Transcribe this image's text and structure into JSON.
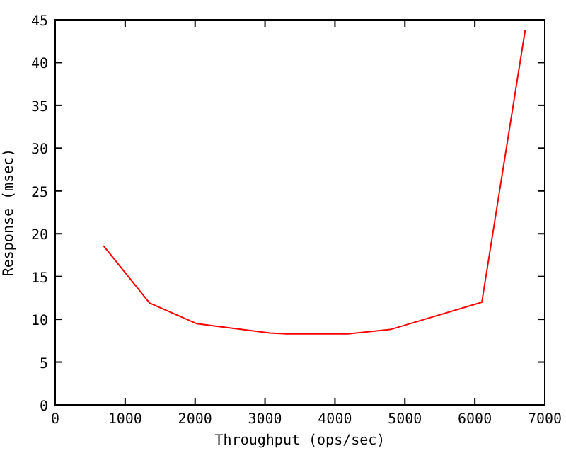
{
  "chart_data": {
    "type": "line",
    "xlabel": "Throughput (ops/sec)",
    "ylabel": "Response (msec)",
    "x": [
      690,
      1350,
      2020,
      3070,
      3310,
      4190,
      4790,
      6100,
      6720
    ],
    "series": [
      {
        "color": "#ff0000",
        "values": [
          18.6,
          11.9,
          9.5,
          8.4,
          8.3,
          8.3,
          8.8,
          12.0,
          43.8
        ]
      }
    ],
    "xlim": [
      0,
      7000
    ],
    "xticks": [
      0,
      1000,
      2000,
      3000,
      4000,
      5000,
      6000,
      7000
    ],
    "ylim": [
      0,
      45
    ],
    "yticks": [
      0,
      5,
      10,
      15,
      20,
      25,
      30,
      35,
      40,
      45
    ],
    "grid": false
  }
}
